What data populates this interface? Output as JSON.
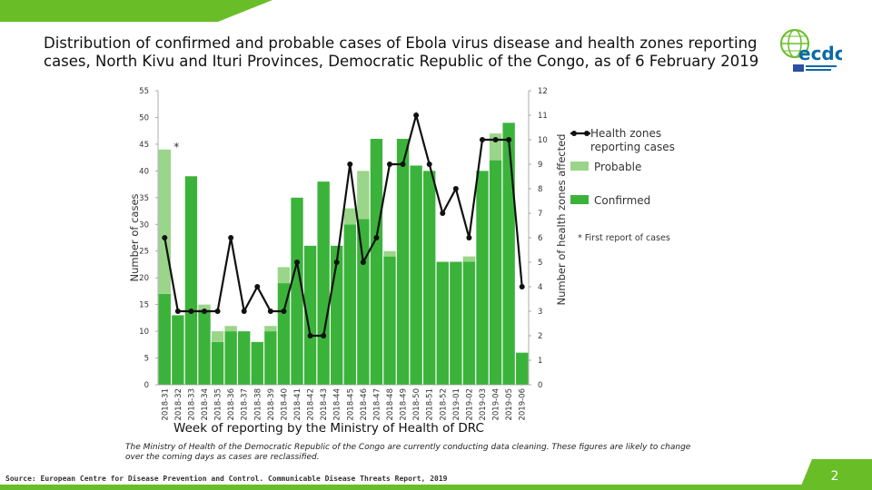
{
  "title": "Distribution of confirmed and probable cases of Ebola virus disease and health zones reporting cases, North Kivu and Ituri Provinces, Democratic Republic of the Congo, as of 6 February 2019",
  "logo": {
    "icon": "ecdc-logo-icon",
    "text": "ecdc",
    "accent": "#0a6aa6",
    "green": "#69be28"
  },
  "footer": {
    "note": "The Ministry of Health of the Democratic Republic of the Congo are currently conducting data cleaning. These figures are likely to change over the coming days as cases are reclassified.",
    "source": "Source: European Centre for Disease Prevention and Control. Communicable Disease Threats Report, 2019",
    "page": "2"
  },
  "chart_data": {
    "type": "bar",
    "stacked": true,
    "title": "",
    "xlabel": "Week of reporting by the Ministry of Health of DRC",
    "ylabel": "Number of cases",
    "y2label": "Number of health zones affected",
    "ylim": [
      0,
      55
    ],
    "y2lim": [
      0,
      12
    ],
    "yticks": [
      0,
      5,
      10,
      15,
      20,
      25,
      30,
      35,
      40,
      45,
      50,
      55
    ],
    "y2ticks": [
      0,
      1,
      2,
      3,
      4,
      5,
      6,
      7,
      8,
      9,
      10,
      11,
      12
    ],
    "categories": [
      "2018-31",
      "2018-32",
      "2018-33",
      "2018-34",
      "2018-35",
      "2018-36",
      "2018-37",
      "2018-38",
      "2018-39",
      "2018-40",
      "2018-41",
      "2018-42",
      "2018-43",
      "2018-44",
      "2018-45",
      "2018-46",
      "2018-47",
      "2018-48",
      "2018-49",
      "2018-50",
      "2018-51",
      "2018-52",
      "2019-01",
      "2019-02",
      "2019-03",
      "2019-04",
      "2019-05",
      "2019-06"
    ],
    "series": [
      {
        "name": "Confirmed",
        "kind": "bar",
        "color": "#3bb33b",
        "values": [
          17,
          13,
          39,
          14,
          8,
          10,
          10,
          8,
          10,
          19,
          35,
          26,
          38,
          26,
          30,
          31,
          46,
          24,
          46,
          41,
          40,
          23,
          23,
          23,
          40,
          42,
          49,
          6
        ]
      },
      {
        "name": "Probable",
        "kind": "bar",
        "color": "#9ad58a",
        "values": [
          27,
          0,
          0,
          1,
          2,
          1,
          0,
          0,
          1,
          3,
          0,
          0,
          0,
          0,
          3,
          9,
          0,
          1,
          0,
          0,
          0,
          0,
          0,
          1,
          0,
          5,
          0,
          0
        ]
      },
      {
        "name": "Health zones reporting cases",
        "kind": "line",
        "axis": "right",
        "color": "#111111",
        "values": [
          6,
          3,
          3,
          3,
          3,
          6,
          3,
          4,
          3,
          3,
          5,
          2,
          2,
          5,
          9,
          5,
          6,
          9,
          9,
          11,
          9,
          7,
          8,
          6,
          10,
          10,
          10,
          4
        ]
      }
    ],
    "first_report_marker": {
      "category": "2018-31",
      "text": "*"
    },
    "legend": {
      "position": "right",
      "items": [
        "Health zones reporting cases",
        "Probable",
        "Confirmed"
      ],
      "note": "* First report of cases"
    },
    "grid": false
  }
}
